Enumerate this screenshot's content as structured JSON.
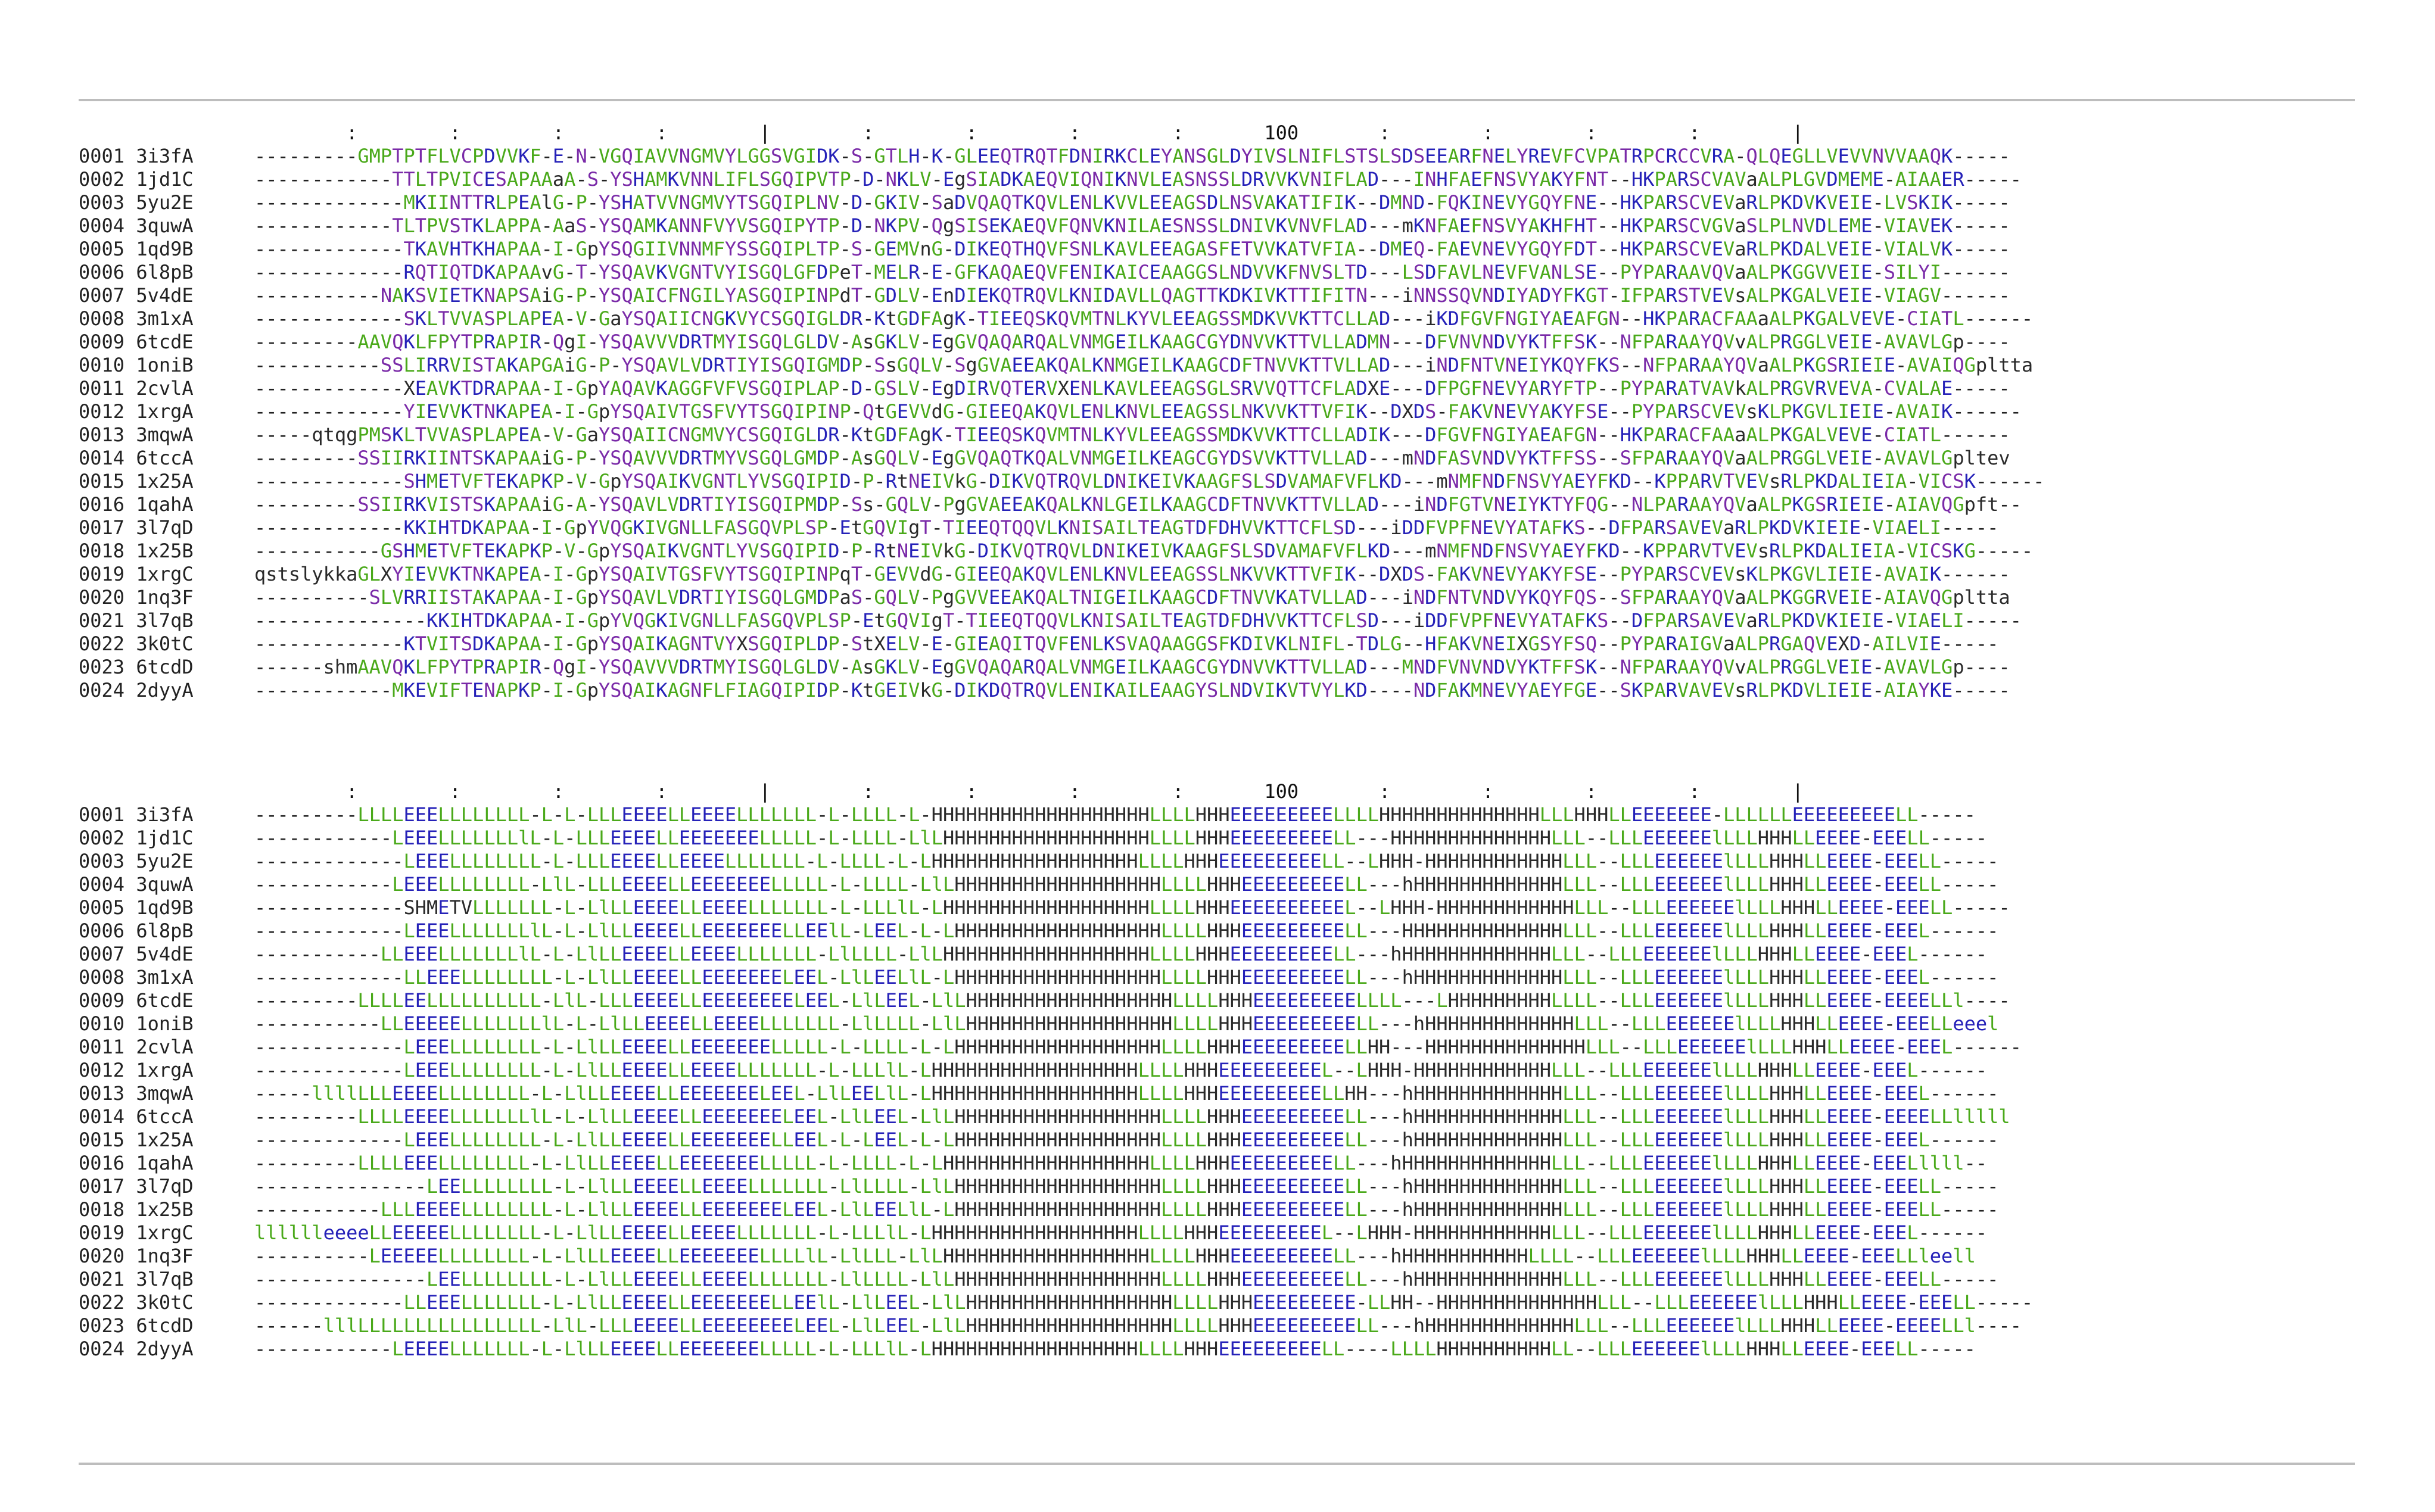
{
  "ruler": "        :        :        :        :        |        :        :        :        :       100       :        :        :        :        |",
  "color_classes": {
    "green": "#4aa91a",
    "blue": "#2521b8",
    "purple": "#7a2aa8",
    "red": "#c01818",
    "black": "#2a2a2a"
  },
  "sequences": [
    {
      "id": "0001 3i3fA",
      "aln": "---------GMPTPTFLVCPDVVKF-E-N-VGQIAVVNGMVYLGGSVGIDK-S-GTLH-K-GLEEQTRQTFDNIRKCLEYANSGLDYIVSLNIFLSTSLSDSEEARFNELYREVFCVPATRPCRCCVRA-QLQEGLLVEVVNVVAAQK-----"
    },
    {
      "id": "0002 1jd1C",
      "aln": "------------TTLTPVICESAPAAaA-S-YSHAMKVNNLIFLSGQIPVTP-D-NKLV-EgSIADKAEQVIQNIKNVLEASNSSLDRVVKVNIFLAD---INHFAEFNSVYAKYFNT--HKPARSCVAVaALPLGVDMEME-AIAAER-----"
    },
    {
      "id": "0003 5yu2E",
      "aln": "-------------MKIINTTRLPEAlG-P-YSHATVVNGMVYTSGQIPLNV-D-GKIV-SaDVQAQTKQVLENLKVVLEEAGSDLNSVAKATIFIK--DMND-FQKINEVYGQYFNE--HKPARSCVEVaRLPKDVKVEIE-LVSKIK-----"
    },
    {
      "id": "0004 3quwA",
      "aln": "------------TLTPVSTKLAPPA-AaS-YSQAMKANNFVYVSGQIPYTP-D-NKPV-QgSISEKAEQVFQNVKNILAESNSSLDNIVKVNVFLAD---mKNFAEFNSVYAKHFHT--HKPARSCVGVaSLPLNVDLEME-VIAVEK-----"
    },
    {
      "id": "0005 1qd9B",
      "aln": "-------------TKAVHTKHAPAA-I-GpYSQGIIVNNMFYSSGQIPLTP-S-GEMVnG-DIKEQTHQVFSNLKAVLEEAGASFETVVKATVFIA--DMEQ-FAEVNEVYGQYFDT--HKPARSCVEVaRLPKDALVEIE-VIALVK-----"
    },
    {
      "id": "0006 6l8pB",
      "aln": "-------------RQTIQTDKAPAAvG-T-YSQAVKVGNTVYISGQLGFDPeT-MELR-E-GFKAQAEQVFENIKAICEAAGGSLNDVVKFNVSLTD---LSDFAVLNEVFVANLSE--PYPARAAVQVaALPKGGVVEIE-SILYI------"
    },
    {
      "id": "0007 5v4dE",
      "aln": "-----------NAKSVIETKNAPSAiG-P-YSQAICFNGILYASGQIPINPdT-GDLV-EnDIEKQTRQVLKNIDAVLLQAGTTKDKIVKTTIFITN---iNNSSQVNDIYADYFKGT-IFPARSTVEVsALPKGALVEIE-VIAGV------"
    },
    {
      "id": "0008 3m1xA",
      "aln": "-------------SKLTVVASPLAPEA-V-GaYSQAIICNGKVYCSGQIGLDR-KtGDFAgK-TIEEQSKQVMTNLKYVLEEAGSSMDKVVKTTCLLAD---iKDFGVFNGIYAEAFGN--HKPARACFAAaALPKGALVEVE-CIATL------"
    },
    {
      "id": "0009 6tcdE",
      "aln": "---------AAVQKLFPYTPRAPIR-QgI-YSQAVVVDRTMYISGQLGLDV-AsGKLV-EgGVQAQARQALVNMGEILKAAGCGYDNVVKTTVLLADMN---DFVNVNDVYKTFFSK--NFPARAAYQVvALPRGGLVEIE-AVAVLGp----"
    },
    {
      "id": "0010 1oniB",
      "aln": "-----------SSLIRRVISTAKAPGAiG-P-YSQAVLVDRTIYISGQIGMDP-SsGQLV-SgGVAEEAKQALKNMGEILKAAGCDFTNVVKTTVLLAD---iNDFNTVNEIYKQYFKS--NFPARAAYQVaALPKGSRIEIE-AVAIQGpltta"
    },
    {
      "id": "0011 2cvlA",
      "aln": "-------------XEAVKTDRAPAA-I-GpYAQAVKAGGFVFVSGQIPLAP-D-GSLV-EgDIRVQTERVXENLKAVLEEAGSGLSRVVQTTCFLADXE---DFPGFNEVYARYFTP--PYPARATVAVkALPRGVRVEVA-CVALAE-----"
    },
    {
      "id": "0012 1xrgA",
      "aln": "-------------YIEVVKTNKAPEA-I-GpYSQAIVTGSFVYTSGQIPINP-QtGEVVdG-GIEEQAKQVLENLKNVLEEAGSSLNKVVKTTVFIK--DXDS-FAKVNEVYAKYFSE--PYPARSCVEVsKLPKGVLIEIE-AVAIK------"
    },
    {
      "id": "0013 3mqwA",
      "aln": "-----qtqgPMSKLTVVASPLAPEA-V-GaYSQAIICNGMVYCSGQIGLDR-KtGDFAgK-TIEEQSKQVMTNLKYVLEEAGSSMDKVVKTTCLLADIK---DFGVFNGIYAEAFGN--HKPARACFAAaALPKGALVEVE-CIATL------"
    },
    {
      "id": "0014 6tccA",
      "aln": "---------SSIIRKIINTSKAPAAiG-P-YSQAVVVDRTMYVSGQLGMDP-AsGQLV-EgGVQAQTKQALVNMGEILKEAGCGYDSVVKTTVLLAD---mNDFASVNDVYKTFFSS--SFPARAAYQVaALPRGGLVEIE-AVAVLGpltev"
    },
    {
      "id": "0015 1x25A",
      "aln": "-------------SHMETVFTEKAPKP-V-GpYSQAIKVGNTLYVSGQIPID-P-RtNEIVkG-DIKVQTRQVLDNIKEIVKAAGFSLSDVAMAFVFLKD---mNMFNDFNSVYAEYFKD--KPPARVTVEVsRLPKDALIEIA-VICSK------"
    },
    {
      "id": "0016 1qahA",
      "aln": "---------SSIIRKVISTSKAPAAiG-A-YSQAVLVDRTIYISGQIPMDP-Ss-GQLV-PgGVAEEAKQALKNLGEILKAAGCDFTNVVKTTVLLAD---iNDFGTVNEIYKTYFQG--NLPARAAYQVaALPKGSRIEIE-AIAVQGpft--"
    },
    {
      "id": "0017 3l7qD",
      "aln": "-------------KKIHTDKAPAA-I-GpYVQGKIVGNLLFASGQVPLSP-EtGQVIgT-TIEEQTQQVLKNISAILTEAGTDFDHVVKTTCFLSD---iDDFVPFNEVYATAFKS--DFPARSAVEVaRLPKDVKIEIE-VIAELI-----"
    },
    {
      "id": "0018 1x25B",
      "aln": "-----------GSHMETVFTEKAPKP-V-GpYSQAIKVGNTLYVSGQIPID-P-RtNEIVkG-DIKVQTRQVLDNIKEIVKAAGFSLSDVAMAFVFLKD---mNMFNDFNSVYAEYFKD--KPPARVTVEVsRLPKDALIEIA-VICSKG-----"
    },
    {
      "id": "0019 1xrgC",
      "aln": "qstslykkaGLXYIEVVKTNKAPEA-I-GpYSQAIVTGSFVYTSGQIPINPqT-GEVVdG-GIEEQAKQVLENLKNVLEEAGSSLNKVVKTTVFIK--DXDS-FAKVNEVYAKYFSE--PYPARSCVEVsKLPKGVLIEIE-AVAIK------"
    },
    {
      "id": "0020 1nq3F",
      "aln": "----------SLVRRIISTAKAPAA-I-GpYSQAVLVDRTIYISGQLGMDPaS-GQLV-PgGVVEEAKQALTNIGEILKAAGCDFTNVVKATVLLAD---iNDFNTVNDVYKQYFQS--SFPARAAYQVaALPKGGRVEIE-AIAVQGpltta"
    },
    {
      "id": "0021 3l7qB",
      "aln": "---------------KKIHTDKAPAA-I-GpYVQGKIVGNLLFASGQVPLSP-EtGQVIgT-TIEEQTQQVLKNISAILTEAGTDFDHVVKTTCFLSD---iDDFVPFNEVYATAFKS--DFPARSAVEVaRLPKDVKIEIE-VIAELI-----"
    },
    {
      "id": "0022 3k0tC",
      "aln": "-------------KTVITSDKAPAA-I-GpYSQAIKAGNTVYXSGQIPLDP-StXELV-E-GIEAQITQVFENLKSVAQAAGGSFKDIVKLNIFL-TDLG--HFAKVNEIXGSYFSQ--PYPARAIGVaALPRGAQVEXD-AILVIE-----"
    },
    {
      "id": "0023 6tcdD",
      "aln": "------shmAAVQKLFPYTPRAPIR-QgI-YSQAVVVDRTMYISGQLGLDV-AsGKLV-EgGVQAQARQALVNMGEILKAAGCGYDNVVKTTVLLAD---MNDFVNVNDVYKTFFSK--NFPARAAYQVvALPRGGLVEIE-AVAVLGp----"
    },
    {
      "id": "0024 2dyyA",
      "aln": "------------MKEVIFTENAPKP-I-GpYSQAIKAGNFLFIAGQIPIDP-KtGEIVkG-DIKDQTRQVLENIKAILEAAGYSLNDVIKVTVYLKD----NDFAKMNEVYAEYFGE--SKPARVAVEVsRLPKDVLIEIE-AIAYKE-----"
    }
  ],
  "structures": [
    {
      "id": "0001 3i3fA",
      "aln": "---------LLLLEEELLLLLLLL-L-L-LLLEEEELLEEEELLLLLLL-L-LLLL-L-HHHHHHHHHHHHHHHHHHHLLLLHHHEEEEEEEEELLLLHHHHHHHHHHHHHHLLLHHHLLEEEEEEE-LLLLLLEEEEEEEEELL-----"
    },
    {
      "id": "0002 1jd1C",
      "aln": "------------LEEELLLLLLLlL-L-LLLEEEELLEEEEEEELLLLL-L-LLLL-LlLHHHHHHHHHHHHHHHHHHLLLLHHHEEEEEEEEELL---HHHHHHHHHHHHHHLLL--LLLEEEEEElLLLHHHLLEEEE-EEELL-----"
    },
    {
      "id": "0003 5yu2E",
      "aln": "-------------LEEELLLLLLLL-L-LLLEEEELLEEEELLLLLLL-L-LLLL-L-LHHHHHHHHHHHHHHHHHHLLLLHHHEEEEEEEEELL--LHHH-HHHHHHHHHHHHLLL--LLLEEEEEElLLLHHHLLEEEE-EEELL-----"
    },
    {
      "id": "0004 3quwA",
      "aln": "------------LEEELLLLLLLL-LlL-LLLEEEELLEEEEEEELLLLL-L-LLLL-LlLHHHHHHHHHHHHHHHHHHLLLLHHHEEEEEEEEELL---hHHHHHHHHHHHHHLLL--LLLEEEEEElLLLHHHLLEEEE-EEELL-----"
    },
    {
      "id": "0005 1qd9B",
      "aln": "-------------SHMETVLLLLLLL-L-LlLLEEEELLEEEELLLLLLL-L-LLLlL-LHHHHHHHHHHHHHHHHHHLLLLHHHEEEEEEEEEEL--LHHH-HHHHHHHHHHHHLLL--LLLEEEEEElLLLHHHLLEEEE-EEELL-----"
    },
    {
      "id": "0006 6l8pB",
      "aln": "-------------LEEELLLLLLLlL-L-LlLLEEEELLEEEEEEELLEElL-LEEL-L-LHHHHHHHHHHHHHHHHHHLLLLHHHEEEEEEEEELL---HHHHHHHHHHHHHHLLL--LLLEEEEEElLLLHHHLLEEEE-EEEL------"
    },
    {
      "id": "0007 5v4dE",
      "aln": "-----------LLEEELLLLLLLlL-L-LlLLEEEELLEEEELLLLLLL-LlLLLL-LlLHHHHHHHHHHHHHHHHHHLLLLHHHEEEEEEEEELL---hHHHHHHHHHHHHHLLL--LLLEEEEEElLLLHHHLLEEEE-EEEL------"
    },
    {
      "id": "0008 3m1xA",
      "aln": "-------------LLEEELLLLLLLL-L-LlLLEEEELLEEEEEEELEEL-LlLEELlL-LHHHHHHHHHHHHHHHHHHLLLLHHHEEEEEEEEELL---hHHHHHHHHHHHHHLLL--LLLEEEEEElLLLHHHLLEEEE-EEEL------"
    },
    {
      "id": "0009 6tcdE",
      "aln": "---------LLLLEELLLLLLLLLL-LlL-LLLEEEELLEEEEEEEELEEL-LlLEEL-LlLHHHHHHHHHHHHHHHHHHLLLLHHHEEEEEEEEELLLL---LHHHHHHHHHLLLL--LLLEEEEEElLLLHHHLLEEEE-EEEELLl----"
    },
    {
      "id": "0010 1oniB",
      "aln": "-----------LLEEEEELLLLLLLlL-L-LlLLEEEELLEEEELLLLLLL-LlLLLL-LlLHHHHHHHHHHHHHHHHHHLLLLHHHEEEEEEEEELL---hHHHHHHHHHHHHHLLL--LLLEEEEEElLLLHHHLLEEEE-EEELLeeel"
    },
    {
      "id": "0011 2cvlA",
      "aln": "-------------LEEELLLLLLLL-L-LlLLEEEELLEEEEEEELLLLL-L-LLLL-L-LHHHHHHHHHHHHHHHHHHLLLLHHHEEEEEEEEELLHH---HHHHHHHHHHHHHHLLL--LLLEEEEEElLLLHHHLLEEEE-EEEL------"
    },
    {
      "id": "0012 1xrgA",
      "aln": "-------------LEEELLLLLLLL-L-LlLLEEEELLEEEELLLLLLL-L-LLLlL-LHHHHHHHHHHHHHHHHHHLLLLHHHEEEEEEEEEL--LHHH-HHHHHHHHHHHHLLL--LLLEEEEEElLLLHHHLLEEEE-EEEL------"
    },
    {
      "id": "0013 3mqwA",
      "aln": "-----llllLLLEEEELLLLLLLL-L-LlLLEEEELLEEEEEEELEEL-LlLEELlL-LHHHHHHHHHHHHHHHHHHLLLLHHHEEEEEEEEELLHH---hHHHHHHHHHHHHHLLL--LLLEEEEEElLLLHHHLLEEEE-EEEL------"
    },
    {
      "id": "0014 6tccA",
      "aln": "---------LLLLEEEELLLLLLLlL-L-LlLLEEEELLEEEEEEELEEL-LlLEEL-LlLHHHHHHHHHHHHHHHHHHLLLLHHHEEEEEEEEELL---hHHHHHHHHHHHHHLLL--LLLEEEEEElLLLHHHLLEEEE-EEEELLlllll"
    },
    {
      "id": "0015 1x25A",
      "aln": "-------------LEEELLLLLLLL-L-LlLLEEEELLEEEEEEELLEEL-L-LEEL-L-LHHHHHHHHHHHHHHHHHHLLLLHHHEEEEEEEEELL---hHHHHHHHHHHHHHLLL--LLLEEEEEElLLLHHHLLEEEE-EEEL------"
    },
    {
      "id": "0016 1qahA",
      "aln": "---------LLLLEEELLLLLLLL-L-LlLLEEEELLEEEEEEELLLLL-L-LLLL-L-LHHHHHHHHHHHHHHHHHHLLLLHHHEEEEEEEEELL---hHHHHHHHHHHHHHLLL--LLLEEEEEElLLLHHHLLEEEE-EEELllll--"
    },
    {
      "id": "0017 3l7qD",
      "aln": "---------------LEELLLLLLLL-L-LlLLEEEELLEEEELLLLLLL-LlLLLL-LlLHHHHHHHHHHHHHHHHHHLLLLHHHEEEEEEEEELL---hHHHHHHHHHHHHHLLL--LLLEEEEEElLLLHHHLLEEEE-EEELL-----"
    },
    {
      "id": "0018 1x25B",
      "aln": "-----------LLLEEEELLLLLLLL-L-LlLLEEEELLEEEEEEELEEL-LlLEELlL-LHHHHHHHHHHHHHHHHHHLLLLHHHEEEEEEEEELL---hHHHHHHHHHHHHHLLL--LLLEEEEEElLLLHHHLLEEEE-EEELL-----"
    },
    {
      "id": "0019 1xrgC",
      "aln": "lllllleeeeLLEEEEELLLLLLLL-L-LlLLEEEELLEEEELLLLLLL-L-LLLlL-LHHHHHHHHHHHHHHHHHHLLLLHHHEEEEEEEEEL--LHHH-HHHHHHHHHHHHLLL--LLLEEEEEElLLLHHHLLEEEE-EEEL------"
    },
    {
      "id": "0020 1nq3F",
      "aln": "----------LEEEEELLLLLLLL-L-LlLLEEEELLEEEEEEELLLLlL-LlLLL-LlLHHHHHHHHHHHHHHHHHHLLLLHHHEEEEEEEEELL---hHHHHHHHHHHHLLLL--LLLEEEEEElLLLHHHLLEEEE-EEELLleell"
    },
    {
      "id": "0021 3l7qB",
      "aln": "---------------LEELLLLLLLL-L-LlLLEEEELLEEEELLLLLLL-LlLLLL-LlLHHHHHHHHHHHHHHHHHHLLLLHHHEEEEEEEEELL---hHHHHHHHHHHHHHLLL--LLLEEEEEElLLLHHHLLEEEE-EEELL-----"
    },
    {
      "id": "0022 3k0tC",
      "aln": "-------------LLEEELLLLLLL-L-LlLLEEEELLEEEEEEELLEElL-LlLEEL-LlLHHHHHHHHHHHHHHHHHHLLLLHHHEEEEEEEEE-LLHH--HHHHHHHHHHHHHHLLL--LLLEEEEEElLLLHHHLLEEEE-EEELL-----"
    },
    {
      "id": "0023 6tcdD",
      "aln": "------lllLLLLLLLLLLLLLLLL-LlL-LLLEEEELLEEEEEEEELEEL-LlLEEL-LlLHHHHHHHHHHHHHHHHHHLLLLHHHEEEEEEEEELL---hHHHHHHHHHHHHHLLL--LLLEEEEEElLLLHHHLLEEEE-EEEELLl----"
    },
    {
      "id": "0024 2dyyA",
      "aln": "------------LEEEELLLLLLL-L-LlLLEEEELLEEEEEEELLLLL-L-LLLlL-LHHHHHHHHHHHHHHHHHHLLLLHHHEEEEEEEEELL----LLLLHHHHHHHHHHLL--LLLEEEEEElLLLHHHLLEEEE-EEELL-----"
    }
  ]
}
